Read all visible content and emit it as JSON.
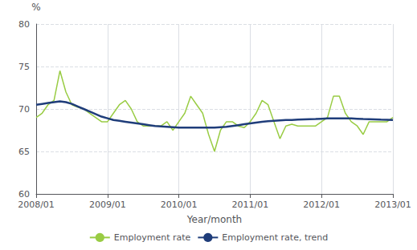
{
  "chart_data": {
    "type": "line",
    "title": "",
    "xlabel": "Year/month",
    "ylabel": "%",
    "categories": [
      "2008/01",
      null,
      null,
      null,
      null,
      null,
      null,
      null,
      null,
      null,
      null,
      null,
      "2009/01",
      null,
      null,
      null,
      null,
      null,
      null,
      null,
      null,
      null,
      null,
      null,
      "2010/01",
      null,
      null,
      null,
      null,
      null,
      null,
      null,
      null,
      null,
      null,
      null,
      "2011/01",
      null,
      null,
      null,
      null,
      null,
      null,
      null,
      null,
      null,
      null,
      null,
      "2012/01",
      null,
      null,
      null,
      null,
      null,
      null,
      null,
      null,
      null,
      null,
      null,
      "2013/01"
    ],
    "series": [
      {
        "name": "Employment rate",
        "color": "#99cc44",
        "values": [
          69.0,
          69.5,
          70.5,
          71.0,
          74.5,
          72.0,
          70.5,
          70.2,
          70.0,
          69.5,
          69.0,
          68.5,
          68.5,
          69.5,
          70.5,
          71.0,
          70.0,
          68.5,
          68.0,
          68.0,
          68.0,
          68.0,
          68.5,
          67.5,
          68.5,
          69.5,
          71.5,
          70.5,
          69.5,
          67.0,
          65.0,
          67.5,
          68.5,
          68.5,
          68.0,
          67.8,
          68.5,
          69.5,
          71.0,
          70.5,
          68.5,
          66.5,
          68.0,
          68.2,
          68.0,
          68.0,
          68.0,
          68.0,
          68.5,
          69.0,
          71.5,
          71.5,
          69.5,
          68.5,
          68.0,
          67.0,
          68.5,
          68.5,
          68.5,
          68.5,
          69.0
        ]
      },
      {
        "name": "Employment rate, trend",
        "color": "#1f3d7a",
        "values": [
          70.5,
          70.6,
          70.7,
          70.8,
          70.9,
          70.8,
          70.6,
          70.3,
          70.0,
          69.7,
          69.4,
          69.1,
          68.9,
          68.7,
          68.6,
          68.5,
          68.4,
          68.3,
          68.2,
          68.1,
          68.0,
          67.95,
          67.9,
          67.85,
          67.8,
          67.8,
          67.8,
          67.8,
          67.8,
          67.8,
          67.8,
          67.85,
          67.9,
          68.0,
          68.1,
          68.2,
          68.3,
          68.4,
          68.5,
          68.55,
          68.6,
          68.65,
          68.7,
          68.7,
          68.75,
          68.78,
          68.8,
          68.82,
          68.85,
          68.88,
          68.9,
          68.9,
          68.9,
          68.88,
          68.85,
          68.82,
          68.8,
          68.78,
          68.75,
          68.73,
          68.7
        ]
      }
    ],
    "ylim": [
      60,
      80
    ],
    "yticks": [
      60,
      65,
      70,
      75,
      80
    ],
    "grid": true,
    "legend": "bottom"
  }
}
